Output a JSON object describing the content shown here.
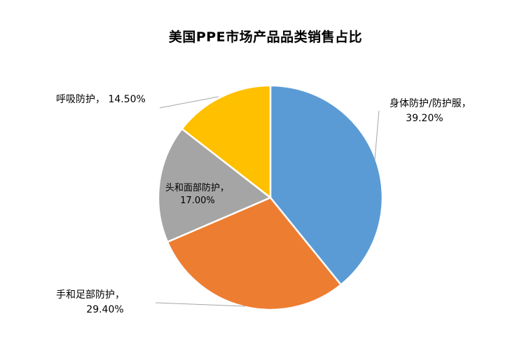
{
  "chart_data": {
    "type": "pie",
    "title": "美国PPE市场产品品类销售占比",
    "slices": [
      {
        "name": "身体防护/防护服",
        "value": 39.2,
        "value_label": "39.20%",
        "color": "#5B9BD5"
      },
      {
        "name": "手和足部防护",
        "value": 29.4,
        "value_label": "29.40%",
        "color": "#ED7D31"
      },
      {
        "name": "头和面部防护",
        "value": 17.0,
        "value_label": "17.00%",
        "color": "#A5A5A5"
      },
      {
        "name": "呼吸防护",
        "value": 14.5,
        "value_label": "14.50%",
        "color": "#FFC000"
      }
    ],
    "legend": "none",
    "label_separator": "，"
  }
}
